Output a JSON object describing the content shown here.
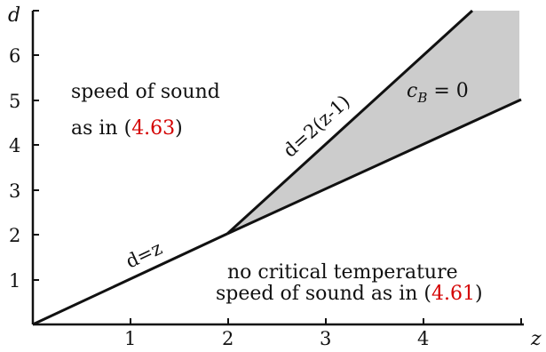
{
  "x_axis": {
    "label": "z",
    "ticks": [
      "1",
      "2",
      "3",
      "4"
    ]
  },
  "y_axis": {
    "label": "d",
    "ticks": [
      "1",
      "2",
      "3",
      "4",
      "5",
      "6"
    ]
  },
  "lines": [
    {
      "name": "d=z",
      "label": "d=z",
      "from": [
        0,
        0
      ],
      "to": [
        2,
        2
      ]
    },
    {
      "name": "d=2(z-1)",
      "label": "d=2(z-1)",
      "from": [
        2,
        2
      ],
      "to": [
        4.5,
        7
      ]
    },
    {
      "name": "lower boundary",
      "label": "",
      "from": [
        2,
        2
      ],
      "to": [
        5,
        5
      ]
    }
  ],
  "shaded_region": {
    "label_math_c": "c",
    "label_math_sub": "B",
    "label_math_rest": " = 0",
    "fill": "#cccccc"
  },
  "regions": {
    "upper_left": {
      "line1": "speed of sound",
      "line2_prefix": "as in (",
      "line2_ref": "4.63",
      "line2_suffix": ")"
    },
    "lower_right": {
      "line1": "no critical temperature",
      "line2_prefix": "speed of sound as in (",
      "line2_ref": "4.61",
      "line2_suffix": ")"
    }
  },
  "colors": {
    "reference": "#d40000",
    "shade": "#cccccc",
    "ink": "#111111"
  }
}
